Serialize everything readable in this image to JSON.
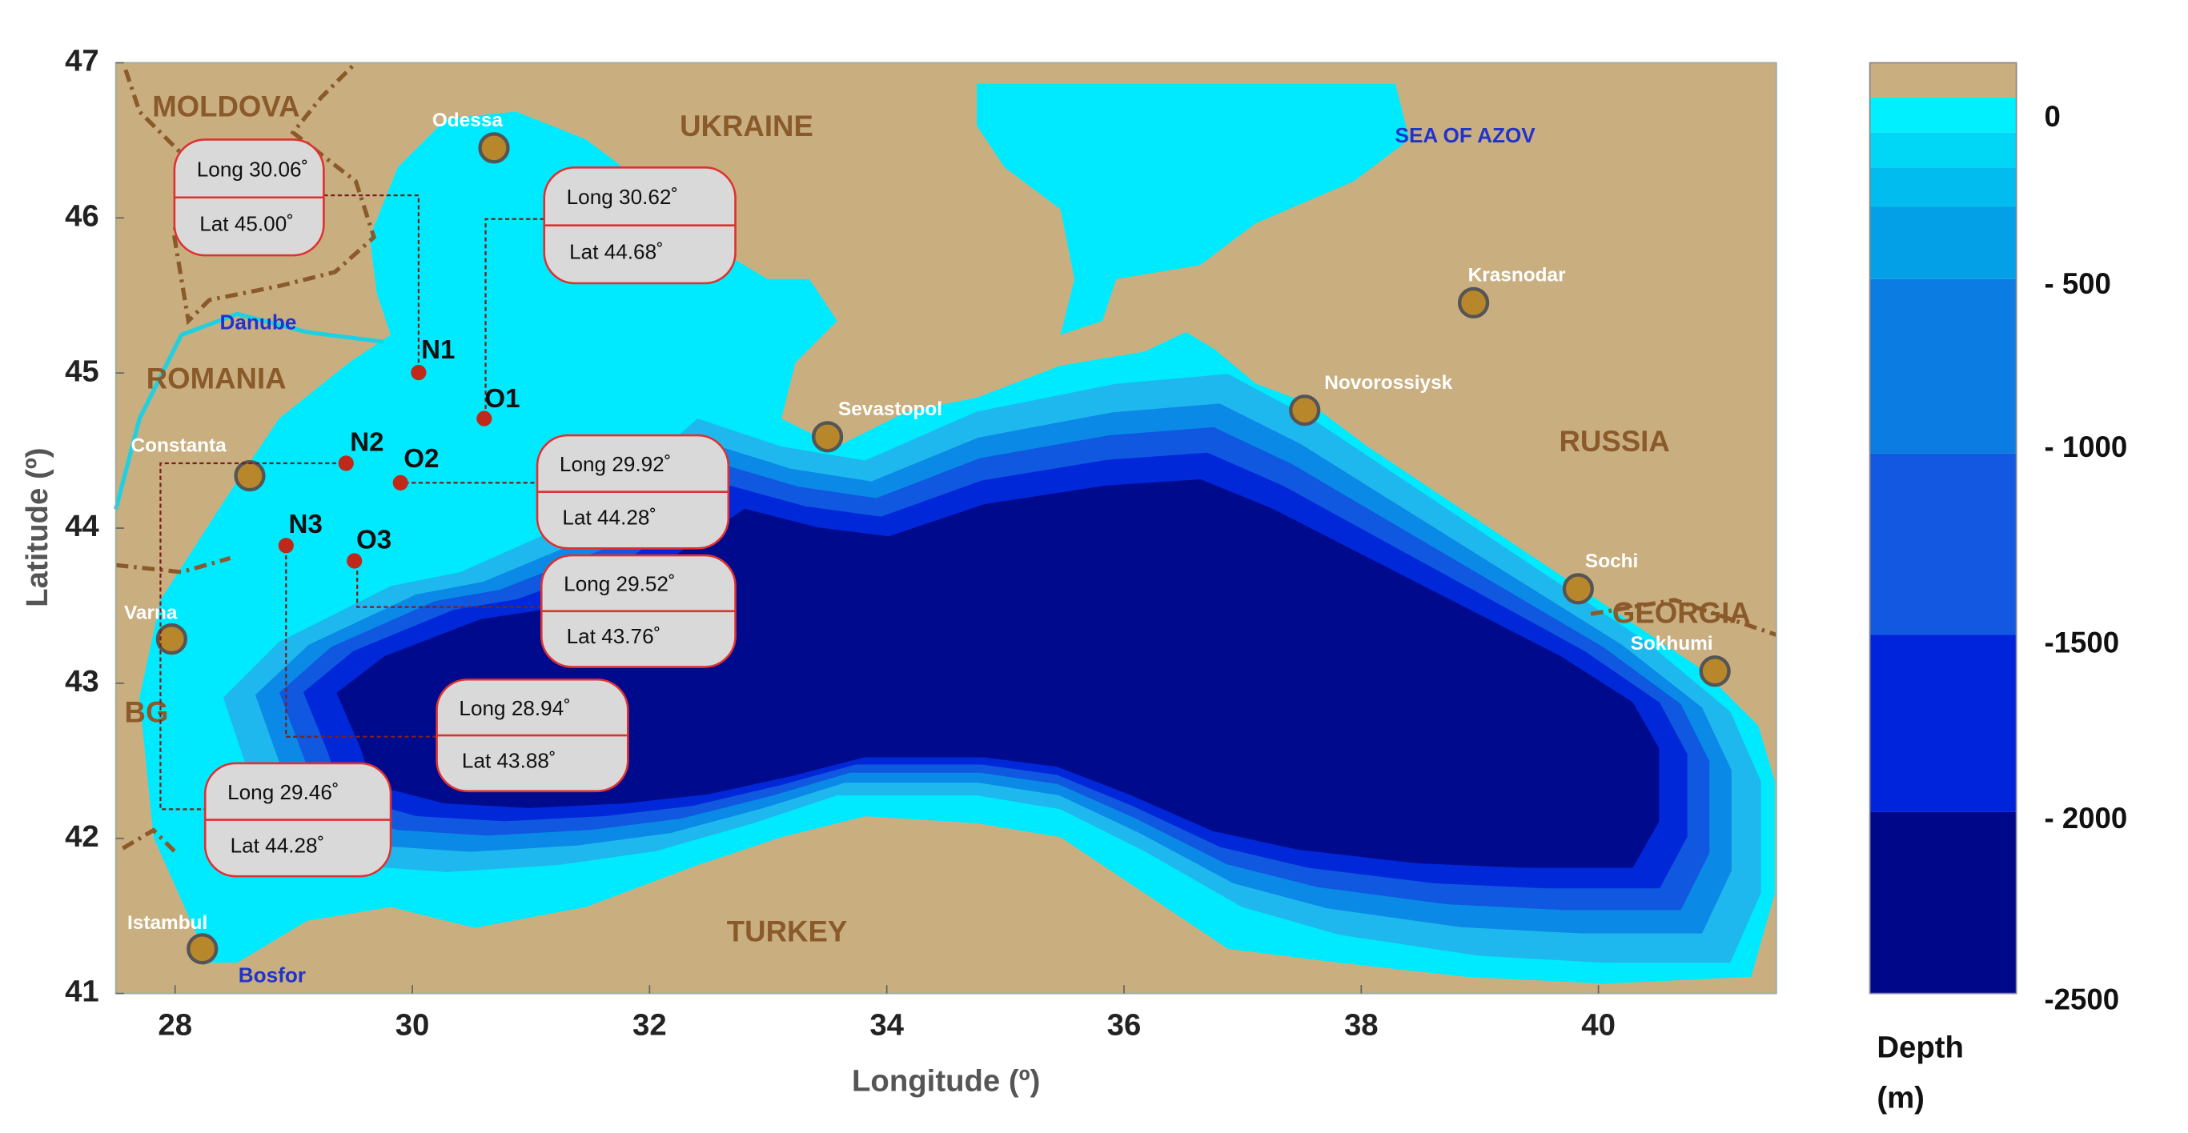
{
  "map": {
    "x_label": "Longitude (º)",
    "y_label": "Latitude (º)",
    "xlim": [
      27.5,
      41.5
    ],
    "ylim": [
      41,
      47
    ],
    "xticks": [
      28,
      30,
      32,
      34,
      36,
      38,
      40
    ],
    "yticks": [
      41,
      42,
      43,
      44,
      45,
      46,
      47
    ],
    "countries": [
      "MOLDOVA",
      "UKRAINE",
      "ROMANIA",
      "RUSSIA",
      "GEORGIA",
      "BG",
      "TURKEY"
    ],
    "waters": [
      "SEA OF AZOV",
      "Danube",
      "Bosfor"
    ],
    "cities": [
      "Odessa",
      "Krasnodar",
      "Novorossiysk",
      "Sevastopol",
      "Constanta",
      "Varna",
      "Sochi",
      "Sokhumi",
      "Istambul"
    ],
    "stations": [
      "N1",
      "O1",
      "N2",
      "O2",
      "N3",
      "O3"
    ],
    "callouts": [
      {
        "long": "Long 30.06˚",
        "lat": "Lat 45.00˚"
      },
      {
        "long": "Long 30.62˚",
        "lat": "Lat 44.68˚"
      },
      {
        "long": "Long 29.92˚",
        "lat": "Lat 44.28˚"
      },
      {
        "long": "Long 29.52˚",
        "lat": "Lat 43.76˚"
      },
      {
        "long": "Long 28.94˚",
        "lat": "Lat 43.88˚"
      },
      {
        "long": "Long 29.46˚",
        "lat": "Lat 44.28˚"
      }
    ]
  },
  "colorbar": {
    "title": [
      "Depth",
      "(m)"
    ],
    "ticks": [
      {
        "value": 0,
        "label": "0"
      },
      {
        "value": -500,
        "label": "- 500"
      },
      {
        "value": -1000,
        "label": "- 1000"
      },
      {
        "value": -1500,
        "label": "-1500"
      },
      {
        "value": -2000,
        "label": "- 2000"
      },
      {
        "value": -2500,
        "label": "-2500"
      }
    ]
  }
}
